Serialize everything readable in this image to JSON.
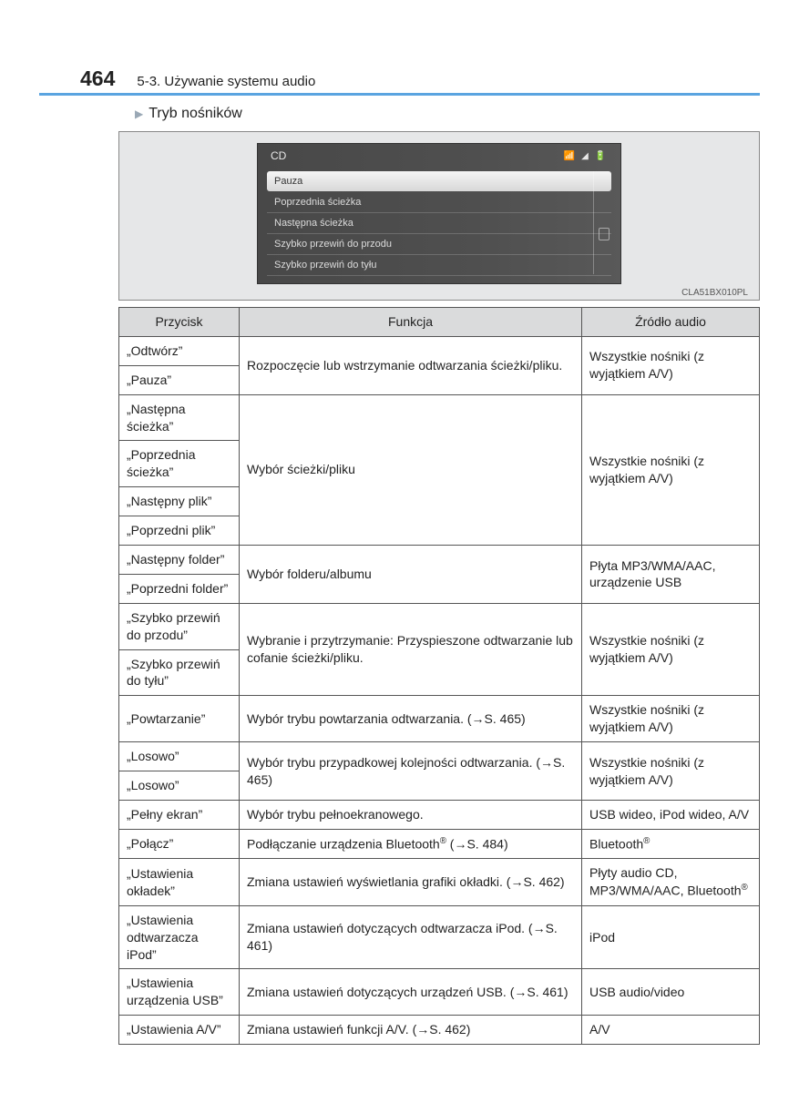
{
  "page_number": "464",
  "header_title": "5-3. Używanie systemu audio",
  "section_title": "Tryb nośników",
  "screenshot": {
    "title": "CD",
    "menu": [
      "Pauza",
      "Poprzednia ścieżka",
      "Następna ścieżka",
      "Szybko przewiń do przodu",
      "Szybko przewiń do tyłu"
    ],
    "code": "CLA51BX010PL"
  },
  "table": {
    "headers": [
      "Przycisk",
      "Funkcja",
      "Źródło audio"
    ],
    "groups": [
      {
        "buttons": [
          "„Odtwórz”",
          "„Pauza”"
        ],
        "func": "Rozpoczęcie lub wstrzymanie odtwarzania ścieżki/pliku.",
        "source": "Wszystkie nośniki (z wyjątkiem A/V)"
      },
      {
        "buttons": [
          "„Następna ścieżka”",
          "„Poprzednia ścieżka”",
          "„Następny plik”",
          "„Poprzedni plik”"
        ],
        "func": "Wybór ścieżki/pliku",
        "source": "Wszystkie nośniki (z wyjątkiem A/V)"
      },
      {
        "buttons": [
          "„Następny folder”",
          "„Poprzedni folder”"
        ],
        "func": "Wybór folderu/albumu",
        "source": "Płyta MP3/WMA/AAC, urządzenie USB"
      },
      {
        "buttons": [
          "„Szybko przewiń do przodu”",
          "„Szybko przewiń do tyłu”"
        ],
        "func": "Wybranie i przytrzymanie: Przyspieszone odtwarzanie lub cofanie ścieżki/pliku.",
        "source": "Wszystkie nośniki (z wyjątkiem A/V)"
      },
      {
        "buttons": [
          "„Powtarzanie”"
        ],
        "func": "Wybór trybu powtarzania odtwarzania. (→S. 465)",
        "source": "Wszystkie nośniki (z wyjątkiem A/V)"
      },
      {
        "buttons": [
          "„Losowo”",
          "„Losowo”"
        ],
        "func": "Wybór trybu przypadkowej kolejności odtwarzania. (→S. 465)",
        "source": "Wszystkie nośniki (z wyjątkiem A/V)"
      },
      {
        "buttons": [
          "„Pełny ekran”"
        ],
        "func": "Wybór trybu pełnoekranowego.",
        "source": "USB wideo, iPod wideo, A/V"
      },
      {
        "buttons": [
          "„Połącz”"
        ],
        "func_html": "Podłączanie urządzenia Bluetooth<sup>®</sup> (→S. 484)",
        "source_html": "Bluetooth<sup>®</sup>"
      },
      {
        "buttons": [
          "„Ustawienia okładek”"
        ],
        "func": "Zmiana ustawień wyświetlania grafiki okładki. (→S. 462)",
        "source_html": "Płyty audio CD, MP3/WMA/AAC, Bluetooth<sup>®</sup>"
      },
      {
        "buttons": [
          "„Ustawienia odtwarzacza iPod”"
        ],
        "func": "Zmiana ustawień dotyczących odtwarzacza iPod. (→S. 461)",
        "source": "iPod"
      },
      {
        "buttons": [
          "„Ustawienia urządzenia USB”"
        ],
        "func": "Zmiana ustawień dotyczących urządzeń USB. (→S. 461)",
        "source": "USB audio/video"
      },
      {
        "buttons": [
          "„Ustawienia A/V”"
        ],
        "func": "Zmiana ustawień funkcji A/V. (→S. 462)",
        "source": "A/V"
      }
    ]
  }
}
